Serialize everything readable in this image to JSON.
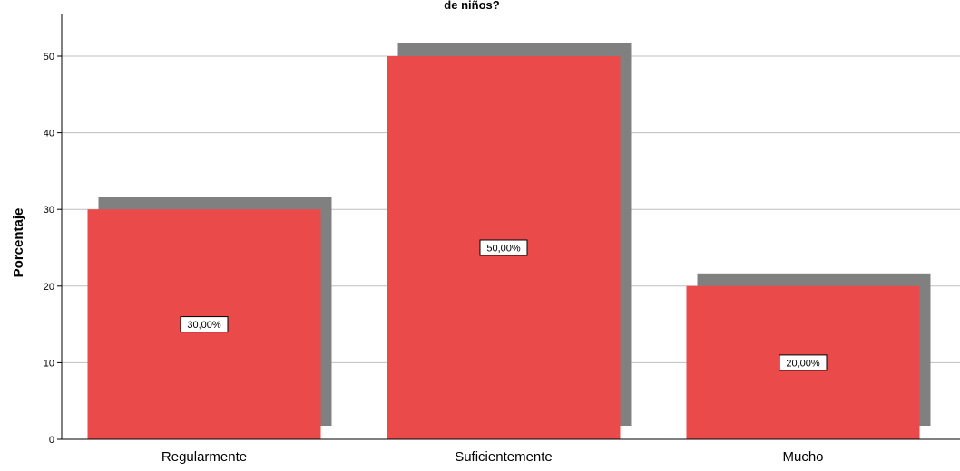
{
  "chart_data": {
    "type": "bar",
    "title": "de niños?",
    "ylabel": "Porcentaje",
    "xlabel": "",
    "categories": [
      "Regularmente",
      "Suficientemente",
      "Mucho"
    ],
    "values": [
      30,
      50,
      20
    ],
    "data_labels": [
      "30,00%",
      "50,00%",
      "20,00%"
    ],
    "ylim": [
      0,
      55
    ],
    "yticks": [
      0,
      10,
      20,
      30,
      40,
      50
    ],
    "grid": true,
    "bar_color": "#EB4A4B",
    "shadow_color": "#808080"
  }
}
